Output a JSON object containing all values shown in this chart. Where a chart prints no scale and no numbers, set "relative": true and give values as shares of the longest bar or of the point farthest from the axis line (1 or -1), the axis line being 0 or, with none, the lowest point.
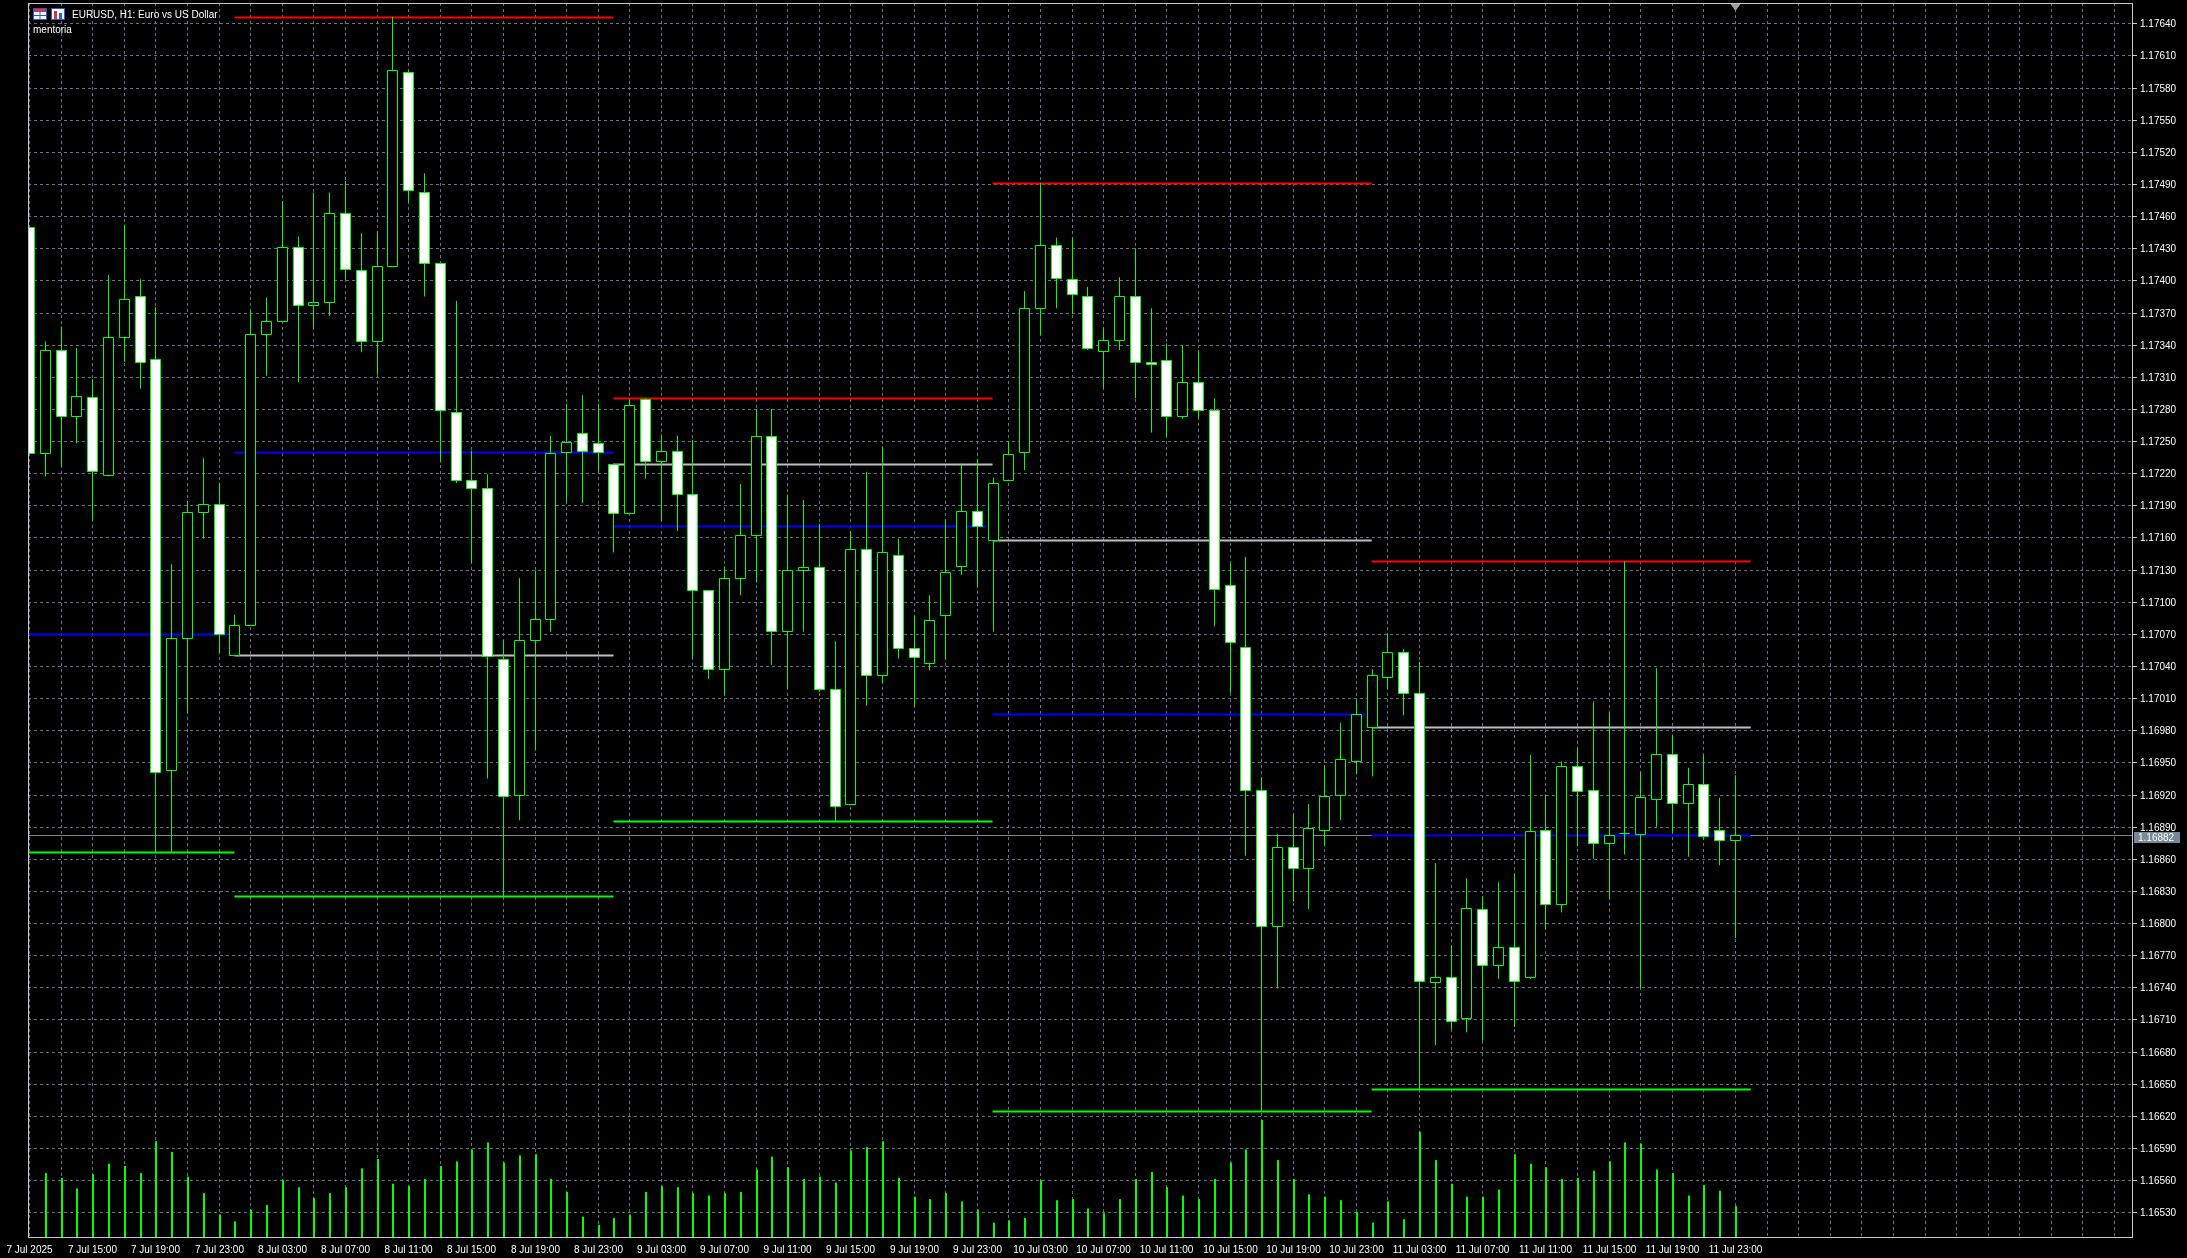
{
  "chart_data": [
    {
      "type": "candlestick",
      "title": "EURUSD, H1: Euro vs US Dollar",
      "subtitle": "mentoria",
      "color": "#00ff00",
      "grid": true,
      "x": [
        "2025-07-07T11:00",
        "2025-07-07T12:00",
        "2025-07-07T13:00",
        "2025-07-07T14:00",
        "2025-07-07T15:00",
        "2025-07-07T16:00",
        "2025-07-07T17:00",
        "2025-07-07T18:00",
        "2025-07-07T19:00",
        "2025-07-07T20:00",
        "2025-07-07T21:00",
        "2025-07-07T22:00",
        "2025-07-07T23:00",
        "2025-07-08T00:00",
        "2025-07-08T01:00",
        "2025-07-08T02:00",
        "2025-07-08T03:00",
        "2025-07-08T04:00",
        "2025-07-08T05:00",
        "2025-07-08T06:00",
        "2025-07-08T07:00",
        "2025-07-08T08:00",
        "2025-07-08T09:00",
        "2025-07-08T10:00",
        "2025-07-08T11:00",
        "2025-07-08T12:00",
        "2025-07-08T13:00",
        "2025-07-08T14:00",
        "2025-07-08T15:00",
        "2025-07-08T16:00",
        "2025-07-08T17:00",
        "2025-07-08T18:00",
        "2025-07-08T19:00",
        "2025-07-08T20:00",
        "2025-07-08T21:00",
        "2025-07-08T22:00",
        "2025-07-08T23:00",
        "2025-07-09T00:00",
        "2025-07-09T01:00",
        "2025-07-09T02:00",
        "2025-07-09T03:00",
        "2025-07-09T04:00",
        "2025-07-09T05:00",
        "2025-07-09T06:00",
        "2025-07-09T07:00",
        "2025-07-09T08:00",
        "2025-07-09T09:00",
        "2025-07-09T10:00",
        "2025-07-09T11:00",
        "2025-07-09T12:00",
        "2025-07-09T13:00",
        "2025-07-09T14:00",
        "2025-07-09T15:00",
        "2025-07-09T16:00",
        "2025-07-09T17:00",
        "2025-07-09T18:00",
        "2025-07-09T19:00",
        "2025-07-09T20:00",
        "2025-07-09T21:00",
        "2025-07-09T22:00",
        "2025-07-09T23:00",
        "2025-07-10T00:00",
        "2025-07-10T01:00",
        "2025-07-10T02:00",
        "2025-07-10T03:00",
        "2025-07-10T04:00",
        "2025-07-10T05:00",
        "2025-07-10T06:00",
        "2025-07-10T07:00",
        "2025-07-10T08:00",
        "2025-07-10T09:00",
        "2025-07-10T10:00",
        "2025-07-10T11:00",
        "2025-07-10T12:00",
        "2025-07-10T13:00",
        "2025-07-10T14:00",
        "2025-07-10T15:00",
        "2025-07-10T16:00",
        "2025-07-10T17:00",
        "2025-07-10T18:00",
        "2025-07-10T19:00",
        "2025-07-10T20:00",
        "2025-07-10T21:00",
        "2025-07-10T22:00",
        "2025-07-10T23:00",
        "2025-07-11T00:00",
        "2025-07-11T01:00",
        "2025-07-11T02:00",
        "2025-07-11T03:00",
        "2025-07-11T04:00",
        "2025-07-11T05:00",
        "2025-07-11T06:00",
        "2025-07-11T07:00",
        "2025-07-11T08:00",
        "2025-07-11T09:00",
        "2025-07-11T10:00",
        "2025-07-11T11:00",
        "2025-07-11T12:00",
        "2025-07-11T13:00",
        "2025-07-11T14:00",
        "2025-07-11T15:00",
        "2025-07-11T16:00",
        "2025-07-11T17:00",
        "2025-07-11T18:00",
        "2025-07-11T19:00",
        "2025-07-11T20:00",
        "2025-07-11T21:00",
        "2025-07-11T22:00",
        "2025-07-11T23:00"
      ],
      "ohlc": [
        [
          1.1745,
          1.1745,
          1.17239,
          1.17239
        ],
        [
          1.17239,
          1.17343,
          1.17217,
          1.17335
        ],
        [
          1.17335,
          1.17357,
          1.17226,
          1.17273
        ],
        [
          1.17273,
          1.17337,
          1.17248,
          1.17292
        ],
        [
          1.17291,
          1.17308,
          1.17176,
          1.17222
        ],
        [
          1.17218,
          1.17405,
          1.17217,
          1.17347
        ],
        [
          1.17347,
          1.17452,
          1.17324,
          1.17383
        ],
        [
          1.17385,
          1.17401,
          1.17299,
          1.17324
        ],
        [
          1.17327,
          1.17375,
          1.16866,
          1.16941
        ],
        [
          1.16943,
          1.17135,
          1.16866,
          1.17066
        ],
        [
          1.17066,
          1.17194,
          1.16996,
          1.17184
        ],
        [
          1.17184,
          1.17234,
          1.17159,
          1.17191
        ],
        [
          1.17191,
          1.17211,
          1.17052,
          1.1707
        ],
        [
          1.1705,
          1.17088,
          1.1705,
          1.17078
        ],
        [
          1.17078,
          1.17372,
          1.17078,
          1.1735
        ],
        [
          1.1735,
          1.17384,
          1.17311,
          1.17362
        ],
        [
          1.17362,
          1.17474,
          1.17362,
          1.17431
        ],
        [
          1.17431,
          1.17441,
          1.17305,
          1.17377
        ],
        [
          1.17377,
          1.17482,
          1.17355,
          1.1738
        ],
        [
          1.1738,
          1.17482,
          1.17367,
          1.17463
        ],
        [
          1.17463,
          1.17493,
          1.17401,
          1.17411
        ],
        [
          1.1741,
          1.17444,
          1.17333,
          1.17343
        ],
        [
          1.17343,
          1.17446,
          1.17312,
          1.17413
        ],
        [
          1.17413,
          1.17646,
          1.17413,
          1.17596
        ],
        [
          1.17595,
          1.17596,
          1.17473,
          1.17484
        ],
        [
          1.17483,
          1.175,
          1.17385,
          1.17416
        ],
        [
          1.17416,
          1.17416,
          1.1723,
          1.17279
        ],
        [
          1.17277,
          1.17381,
          1.17211,
          1.17214
        ],
        [
          1.17214,
          1.17241,
          1.17136,
          1.17206
        ],
        [
          1.17206,
          1.17219,
          1.16935,
          1.17049
        ],
        [
          1.17047,
          1.17064,
          1.16825,
          1.16919
        ],
        [
          1.1692,
          1.17122,
          1.16896,
          1.17064
        ],
        [
          1.17064,
          1.17129,
          1.16961,
          1.17084
        ],
        [
          1.17084,
          1.17255,
          1.17072,
          1.17239
        ],
        [
          1.1724,
          1.17285,
          1.17193,
          1.17249
        ],
        [
          1.17258,
          1.17293,
          1.17192,
          1.17241
        ],
        [
          1.17248,
          1.17285,
          1.17222,
          1.1724
        ],
        [
          1.17229,
          1.17229,
          1.17146,
          1.17183
        ],
        [
          1.17183,
          1.17289,
          1.17183,
          1.17284
        ],
        [
          1.17289,
          1.1729,
          1.17215,
          1.17231
        ],
        [
          1.17231,
          1.17256,
          1.17175,
          1.17241
        ],
        [
          1.17241,
          1.17255,
          1.17166,
          1.17201
        ],
        [
          1.17201,
          1.17251,
          1.17047,
          1.17111
        ],
        [
          1.17111,
          1.17111,
          1.17028,
          1.17037
        ],
        [
          1.17037,
          1.17133,
          1.17013,
          1.17122
        ],
        [
          1.17122,
          1.1721,
          1.17106,
          1.17162
        ],
        [
          1.17162,
          1.1728,
          1.17118,
          1.17255
        ],
        [
          1.17255,
          1.1728,
          1.17041,
          1.17073
        ],
        [
          1.17073,
          1.172,
          1.17019,
          1.1713
        ],
        [
          1.1713,
          1.17195,
          1.17072,
          1.17132
        ],
        [
          1.17132,
          1.17173,
          1.17016,
          1.17019
        ],
        [
          1.17019,
          1.17063,
          1.16895,
          1.16909
        ],
        [
          1.16911,
          1.17166,
          1.1691,
          1.17149
        ],
        [
          1.17149,
          1.17221,
          1.17003,
          1.17032
        ],
        [
          1.17032,
          1.17245,
          1.17024,
          1.17146
        ],
        [
          1.17144,
          1.17159,
          1.17047,
          1.17057
        ],
        [
          1.17057,
          1.17087,
          1.17002,
          1.17048
        ],
        [
          1.17043,
          1.17106,
          1.17036,
          1.17083
        ],
        [
          1.17088,
          1.17177,
          1.17046,
          1.17128
        ],
        [
          1.17133,
          1.17229,
          1.17125,
          1.17185
        ],
        [
          1.17185,
          1.17233,
          1.17114,
          1.17171
        ],
        [
          1.17158,
          1.17216,
          1.17072,
          1.17211
        ],
        [
          1.17214,
          1.1725,
          1.17214,
          1.17238
        ],
        [
          1.1724,
          1.1739,
          1.17223,
          1.17374
        ],
        [
          1.17374,
          1.17491,
          1.17349,
          1.17433
        ],
        [
          1.17433,
          1.1744,
          1.17374,
          1.17402
        ],
        [
          1.17401,
          1.1744,
          1.17369,
          1.17387
        ],
        [
          1.17385,
          1.17394,
          1.17335,
          1.17337
        ],
        [
          1.17334,
          1.17356,
          1.17299,
          1.17344
        ],
        [
          1.17344,
          1.17403,
          1.17335,
          1.17385
        ],
        [
          1.17385,
          1.1743,
          1.1729,
          1.17324
        ],
        [
          1.17324,
          1.17374,
          1.17258,
          1.17322
        ],
        [
          1.17326,
          1.17341,
          1.17254,
          1.17273
        ],
        [
          1.17273,
          1.17339,
          1.17271,
          1.17305
        ],
        [
          1.17305,
          1.17335,
          1.17272,
          1.17279
        ],
        [
          1.17279,
          1.1729,
          1.17077,
          1.17112
        ],
        [
          1.17116,
          1.17136,
          1.17015,
          1.17062
        ],
        [
          1.17058,
          1.17142,
          1.16863,
          1.16924
        ],
        [
          1.16924,
          1.16936,
          1.16625,
          1.16797
        ],
        [
          1.16797,
          1.16883,
          1.16739,
          1.16871
        ],
        [
          1.16871,
          1.16902,
          1.1682,
          1.16851
        ],
        [
          1.16851,
          1.16911,
          1.16813,
          1.16889
        ],
        [
          1.16887,
          1.16947,
          1.16872,
          1.16919
        ],
        [
          1.1692,
          1.16987,
          1.16896,
          1.16953
        ],
        [
          1.16951,
          1.17008,
          1.16939,
          1.16995
        ],
        [
          1.16983,
          1.17037,
          1.16937,
          1.17032
        ],
        [
          1.1703,
          1.1707,
          1.17018,
          1.17053
        ],
        [
          1.17053,
          1.17056,
          1.16994,
          1.17015
        ],
        [
          1.17015,
          1.17044,
          1.16645,
          1.16746
        ],
        [
          1.16745,
          1.16856,
          1.16686,
          1.1675
        ],
        [
          1.1675,
          1.16779,
          1.16701,
          1.16709
        ],
        [
          1.16711,
          1.16842,
          1.16698,
          1.16814
        ],
        [
          1.16813,
          1.16825,
          1.1669,
          1.16761
        ],
        [
          1.16761,
          1.16838,
          1.16748,
          1.16778
        ],
        [
          1.16778,
          1.16846,
          1.16703,
          1.16746
        ],
        [
          1.1675,
          1.16957,
          1.16748,
          1.16886
        ],
        [
          1.16887,
          1.1692,
          1.16794,
          1.16818
        ],
        [
          1.16818,
          1.16951,
          1.1681,
          1.16947
        ],
        [
          1.16947,
          1.16964,
          1.16872,
          1.16923
        ],
        [
          1.16924,
          1.17007,
          1.1686,
          1.16875
        ],
        [
          1.16875,
          1.16997,
          1.16822,
          1.16882
        ],
        [
          1.16884,
          1.17138,
          1.16864,
          1.16884
        ],
        [
          1.16883,
          1.16941,
          1.16739,
          1.16918
        ],
        [
          1.16916,
          1.17038,
          1.1689,
          1.16958
        ],
        [
          1.16958,
          1.16976,
          1.16884,
          1.16912
        ],
        [
          1.16912,
          1.16945,
          1.16862,
          1.1693
        ],
        [
          1.1693,
          1.16957,
          1.16878,
          1.16881
        ],
        [
          1.16887,
          1.16917,
          1.16854,
          1.16878
        ],
        [
          1.16878,
          1.16938,
          1.16786,
          1.16882
        ]
      ],
      "series": [
        {
          "type": "line",
          "x": [
            "2025-07-07T10:56",
            "2025-07-07T23:37"
          ],
          "values": [
            1.1707,
            1.1707
          ],
          "color": "#0000ff"
        },
        {
          "type": "line",
          "x": [
            "2025-07-07T10:56",
            "2025-07-08T00:00"
          ],
          "values": [
            1.16866,
            1.16866
          ],
          "color": "#00ff00"
        },
        {
          "type": "line",
          "x": [
            "2025-07-08T00:00",
            "2025-07-09T00:00"
          ],
          "values": [
            1.17646,
            1.17646
          ],
          "color": "#ff0000"
        },
        {
          "type": "line",
          "x": [
            "2025-07-08T00:00",
            "2025-07-09T00:00"
          ],
          "values": [
            1.1705,
            1.1705
          ],
          "color": "#c0c0c0"
        },
        {
          "type": "line",
          "x": [
            "2025-07-08T00:00",
            "2025-07-09T00:00"
          ],
          "values": [
            1.1724,
            1.1724
          ],
          "color": "#0000ff"
        },
        {
          "type": "line",
          "x": [
            "2025-07-08T00:00",
            "2025-07-09T00:00"
          ],
          "values": [
            1.16825,
            1.16825
          ],
          "color": "#00ff00"
        },
        {
          "type": "line",
          "x": [
            "2025-07-09T00:00",
            "2025-07-10T00:00"
          ],
          "values": [
            1.1729,
            1.1729
          ],
          "color": "#ff0000"
        },
        {
          "type": "line",
          "x": [
            "2025-07-09T00:00",
            "2025-07-10T00:00"
          ],
          "values": [
            1.17229,
            1.17229
          ],
          "color": "#c0c0c0"
        },
        {
          "type": "line",
          "x": [
            "2025-07-09T00:00",
            "2025-07-09T23:37"
          ],
          "values": [
            1.17171,
            1.17171
          ],
          "color": "#0000ff"
        },
        {
          "type": "line",
          "x": [
            "2025-07-09T00:00",
            "2025-07-10T00:00"
          ],
          "values": [
            1.16895,
            1.16895
          ],
          "color": "#00ff00"
        },
        {
          "type": "line",
          "x": [
            "2025-07-10T00:00",
            "2025-07-11T00:00"
          ],
          "values": [
            1.17491,
            1.17491
          ],
          "color": "#ff0000"
        },
        {
          "type": "line",
          "x": [
            "2025-07-10T00:00",
            "2025-07-11T00:00"
          ],
          "values": [
            1.17158,
            1.17158
          ],
          "color": "#c0c0c0"
        },
        {
          "type": "line",
          "x": [
            "2025-07-10T00:00",
            "2025-07-10T23:37"
          ],
          "values": [
            1.16995,
            1.16995
          ],
          "color": "#0000ff"
        },
        {
          "type": "line",
          "x": [
            "2025-07-10T00:00",
            "2025-07-11T00:00"
          ],
          "values": [
            1.16625,
            1.16625
          ],
          "color": "#00ff00"
        },
        {
          "type": "line",
          "x": [
            "2025-07-11T00:00",
            "2025-07-12T00:00"
          ],
          "values": [
            1.17138,
            1.17138
          ],
          "color": "#ff0000"
        },
        {
          "type": "line",
          "x": [
            "2025-07-11T00:00",
            "2025-07-12T00:00"
          ],
          "values": [
            1.16983,
            1.16983
          ],
          "color": "#c0c0c0"
        },
        {
          "type": "line",
          "x": [
            "2025-07-11T00:00",
            "2025-07-12T00:00"
          ],
          "values": [
            1.16882,
            1.16882
          ],
          "color": "#0000ff"
        },
        {
          "type": "line",
          "x": [
            "2025-07-11T00:00",
            "2025-07-12T00:00"
          ],
          "values": [
            1.16645,
            1.16645
          ],
          "color": "#00ff00"
        }
      ],
      "ref_lines": [
        {
          "axis": "y",
          "value": 1.16882,
          "label": "1.16882",
          "color": "#778899"
        }
      ],
      "xlim": [
        "2025-07-07T10:56",
        "2025-07-13T00:12"
      ],
      "xticks": [
        {
          "value": "2025-07-07T11:00",
          "label": "7 Jul 2025"
        },
        {
          "value": "2025-07-07T13:00",
          "label": null
        },
        {
          "value": "2025-07-07T15:00",
          "label": "7 Jul 15:00"
        },
        {
          "value": "2025-07-07T17:00",
          "label": null
        },
        {
          "value": "2025-07-07T19:00",
          "label": "7 Jul 19:00"
        },
        {
          "value": "2025-07-07T21:00",
          "label": null
        },
        {
          "value": "2025-07-07T23:00",
          "label": "7 Jul 23:00"
        },
        {
          "value": "2025-07-08T01:00",
          "label": null
        },
        {
          "value": "2025-07-08T03:00",
          "label": "8 Jul 03:00"
        },
        {
          "value": "2025-07-08T05:00",
          "label": null
        },
        {
          "value": "2025-07-08T07:00",
          "label": "8 Jul 07:00"
        },
        {
          "value": "2025-07-08T09:00",
          "label": null
        },
        {
          "value": "2025-07-08T11:00",
          "label": "8 Jul 11:00"
        },
        {
          "value": "2025-07-08T13:00",
          "label": null
        },
        {
          "value": "2025-07-08T15:00",
          "label": "8 Jul 15:00"
        },
        {
          "value": "2025-07-08T17:00",
          "label": null
        },
        {
          "value": "2025-07-08T19:00",
          "label": "8 Jul 19:00"
        },
        {
          "value": "2025-07-08T21:00",
          "label": null
        },
        {
          "value": "2025-07-08T23:00",
          "label": "8 Jul 23:00"
        },
        {
          "value": "2025-07-09T01:00",
          "label": null
        },
        {
          "value": "2025-07-09T03:00",
          "label": "9 Jul 03:00"
        },
        {
          "value": "2025-07-09T05:00",
          "label": null
        },
        {
          "value": "2025-07-09T07:00",
          "label": "9 Jul 07:00"
        },
        {
          "value": "2025-07-09T09:00",
          "label": null
        },
        {
          "value": "2025-07-09T11:00",
          "label": "9 Jul 11:00"
        },
        {
          "value": "2025-07-09T13:00",
          "label": null
        },
        {
          "value": "2025-07-09T15:00",
          "label": "9 Jul 15:00"
        },
        {
          "value": "2025-07-09T17:00",
          "label": null
        },
        {
          "value": "2025-07-09T19:00",
          "label": "9 Jul 19:00"
        },
        {
          "value": "2025-07-09T21:00",
          "label": null
        },
        {
          "value": "2025-07-09T23:00",
          "label": "9 Jul 23:00"
        },
        {
          "value": "2025-07-10T01:00",
          "label": null
        },
        {
          "value": "2025-07-10T03:00",
          "label": "10 Jul 03:00"
        },
        {
          "value": "2025-07-10T05:00",
          "label": null
        },
        {
          "value": "2025-07-10T07:00",
          "label": "10 Jul 07:00"
        },
        {
          "value": "2025-07-10T09:00",
          "label": null
        },
        {
          "value": "2025-07-10T11:00",
          "label": "10 Jul 11:00"
        },
        {
          "value": "2025-07-10T13:00",
          "label": null
        },
        {
          "value": "2025-07-10T15:00",
          "label": "10 Jul 15:00"
        },
        {
          "value": "2025-07-10T17:00",
          "label": null
        },
        {
          "value": "2025-07-10T19:00",
          "label": "10 Jul 19:00"
        },
        {
          "value": "2025-07-10T21:00",
          "label": null
        },
        {
          "value": "2025-07-10T23:00",
          "label": "10 Jul 23:00"
        },
        {
          "value": "2025-07-11T01:00",
          "label": null
        },
        {
          "value": "2025-07-11T03:00",
          "label": "11 Jul 03:00"
        },
        {
          "value": "2025-07-11T05:00",
          "label": null
        },
        {
          "value": "2025-07-11T07:00",
          "label": "11 Jul 07:00"
        },
        {
          "value": "2025-07-11T09:00",
          "label": null
        },
        {
          "value": "2025-07-11T11:00",
          "label": "11 Jul 11:00"
        },
        {
          "value": "2025-07-11T13:00",
          "label": null
        },
        {
          "value": "2025-07-11T15:00",
          "label": "11 Jul 15:00"
        },
        {
          "value": "2025-07-11T17:00",
          "label": null
        },
        {
          "value": "2025-07-11T19:00",
          "label": "11 Jul 19:00"
        },
        {
          "value": "2025-07-11T21:00",
          "label": null
        },
        {
          "value": "2025-07-11T23:00",
          "label": "11 Jul 23:00"
        },
        {
          "value": "2025-07-12T01:00",
          "label": null
        },
        {
          "value": "2025-07-12T03:00",
          "label": null
        },
        {
          "value": "2025-07-12T05:00",
          "label": null
        },
        {
          "value": "2025-07-12T07:00",
          "label": null
        },
        {
          "value": "2025-07-12T09:00",
          "label": null
        },
        {
          "value": "2025-07-12T11:00",
          "label": null
        },
        {
          "value": "2025-07-12T13:00",
          "label": null
        },
        {
          "value": "2025-07-12T15:00",
          "label": null
        },
        {
          "value": "2025-07-12T17:00",
          "label": null
        },
        {
          "value": "2025-07-12T19:00",
          "label": null
        },
        {
          "value": "2025-07-12T21:00",
          "label": null
        },
        {
          "value": "2025-07-12T23:00",
          "label": null
        }
      ],
      "ylim": [
        1.16506,
        1.17659
      ],
      "yticks": [
        {
          "value": 1.1764,
          "label": "1.17640"
        },
        {
          "value": 1.1761,
          "label": "1.17610"
        },
        {
          "value": 1.1758,
          "label": "1.17580"
        },
        {
          "value": 1.1755,
          "label": "1.17550"
        },
        {
          "value": 1.1752,
          "label": "1.17520"
        },
        {
          "value": 1.1749,
          "label": "1.17490"
        },
        {
          "value": 1.1746,
          "label": "1.17460"
        },
        {
          "value": 1.1743,
          "label": "1.17430"
        },
        {
          "value": 1.174,
          "label": "1.17400"
        },
        {
          "value": 1.1737,
          "label": "1.17370"
        },
        {
          "value": 1.1734,
          "label": "1.17340"
        },
        {
          "value": 1.1731,
          "label": "1.17310"
        },
        {
          "value": 1.1728,
          "label": "1.17280"
        },
        {
          "value": 1.1725,
          "label": "1.17250"
        },
        {
          "value": 1.1722,
          "label": "1.17220"
        },
        {
          "value": 1.1719,
          "label": "1.17190"
        },
        {
          "value": 1.1716,
          "label": "1.17160"
        },
        {
          "value": 1.1713,
          "label": "1.17130"
        },
        {
          "value": 1.171,
          "label": "1.17100"
        },
        {
          "value": 1.1707,
          "label": "1.17070"
        },
        {
          "value": 1.1704,
          "label": "1.17040"
        },
        {
          "value": 1.1701,
          "label": "1.17010"
        },
        {
          "value": 1.1698,
          "label": "1.16980"
        },
        {
          "value": 1.1695,
          "label": "1.16950"
        },
        {
          "value": 1.1692,
          "label": "1.16920"
        },
        {
          "value": 1.1689,
          "label": "1.16890"
        },
        {
          "value": 1.1686,
          "label": "1.16860"
        },
        {
          "value": 1.1683,
          "label": "1.16830"
        },
        {
          "value": 1.168,
          "label": "1.16800"
        },
        {
          "value": 1.1677,
          "label": "1.16770"
        },
        {
          "value": 1.1674,
          "label": "1.16740"
        },
        {
          "value": 1.1671,
          "label": "1.16710"
        },
        {
          "value": 1.1668,
          "label": "1.16680"
        },
        {
          "value": 1.1665,
          "label": "1.16650"
        },
        {
          "value": 1.1662,
          "label": "1.16620"
        },
        {
          "value": 1.1659,
          "label": "1.16590"
        },
        {
          "value": 1.1656,
          "label": "1.16560"
        },
        {
          "value": 1.1653,
          "label": "1.16530"
        }
      ]
    },
    {
      "type": "bar",
      "relative": true,
      "color": "#00ff00",
      "xlim": [
        "2025-07-07T10:56",
        "2025-07-13T00:12"
      ],
      "x": [
        "2025-07-07T12:00",
        "2025-07-07T13:00",
        "2025-07-07T14:00",
        "2025-07-07T15:00",
        "2025-07-07T16:00",
        "2025-07-07T17:00",
        "2025-07-07T18:00",
        "2025-07-07T19:00",
        "2025-07-07T20:00",
        "2025-07-07T21:00",
        "2025-07-07T22:00",
        "2025-07-07T23:00",
        "2025-07-08T00:00",
        "2025-07-08T01:00",
        "2025-07-08T02:00",
        "2025-07-08T03:00",
        "2025-07-08T04:00",
        "2025-07-08T05:00",
        "2025-07-08T06:00",
        "2025-07-08T07:00",
        "2025-07-08T08:00",
        "2025-07-08T09:00",
        "2025-07-08T10:00",
        "2025-07-08T11:00",
        "2025-07-08T12:00",
        "2025-07-08T13:00",
        "2025-07-08T14:00",
        "2025-07-08T15:00",
        "2025-07-08T16:00",
        "2025-07-08T17:00",
        "2025-07-08T18:00",
        "2025-07-08T19:00",
        "2025-07-08T20:00",
        "2025-07-08T21:00",
        "2025-07-08T22:00",
        "2025-07-08T23:00",
        "2025-07-09T00:00",
        "2025-07-09T01:00",
        "2025-07-09T02:00",
        "2025-07-09T03:00",
        "2025-07-09T04:00",
        "2025-07-09T05:00",
        "2025-07-09T06:00",
        "2025-07-09T07:00",
        "2025-07-09T08:00",
        "2025-07-09T09:00",
        "2025-07-09T10:00",
        "2025-07-09T11:00",
        "2025-07-09T12:00",
        "2025-07-09T13:00",
        "2025-07-09T14:00",
        "2025-07-09T15:00",
        "2025-07-09T16:00",
        "2025-07-09T17:00",
        "2025-07-09T18:00",
        "2025-07-09T19:00",
        "2025-07-09T20:00",
        "2025-07-09T21:00",
        "2025-07-09T22:00",
        "2025-07-09T23:00",
        "2025-07-10T00:00",
        "2025-07-10T01:00",
        "2025-07-10T02:00",
        "2025-07-10T03:00",
        "2025-07-10T04:00",
        "2025-07-10T05:00",
        "2025-07-10T06:00",
        "2025-07-10T07:00",
        "2025-07-10T08:00",
        "2025-07-10T09:00",
        "2025-07-10T10:00",
        "2025-07-10T11:00",
        "2025-07-10T12:00",
        "2025-07-10T13:00",
        "2025-07-10T14:00",
        "2025-07-10T15:00",
        "2025-07-10T16:00",
        "2025-07-10T17:00",
        "2025-07-10T18:00",
        "2025-07-10T19:00",
        "2025-07-10T20:00",
        "2025-07-10T21:00",
        "2025-07-10T22:00",
        "2025-07-10T23:00",
        "2025-07-11T00:00",
        "2025-07-11T01:00",
        "2025-07-11T02:00",
        "2025-07-11T03:00",
        "2025-07-11T04:00",
        "2025-07-11T05:00",
        "2025-07-11T06:00",
        "2025-07-11T07:00",
        "2025-07-11T08:00",
        "2025-07-11T09:00",
        "2025-07-11T10:00",
        "2025-07-11T11:00",
        "2025-07-11T12:00",
        "2025-07-11T13:00",
        "2025-07-11T14:00",
        "2025-07-11T15:00",
        "2025-07-11T16:00",
        "2025-07-11T17:00",
        "2025-07-11T18:00",
        "2025-07-11T19:00",
        "2025-07-11T20:00",
        "2025-07-11T21:00",
        "2025-07-11T22:00",
        "2025-07-11T23:00"
      ],
      "values": [
        0.55,
        0.51,
        0.42,
        0.54,
        0.63,
        0.61,
        0.55,
        0.82,
        0.73,
        0.52,
        0.38,
        0.2,
        0.14,
        0.24,
        0.28,
        0.49,
        0.43,
        0.34,
        0.38,
        0.43,
        0.59,
        0.67,
        0.46,
        0.44,
        0.5,
        0.61,
        0.65,
        0.75,
        0.81,
        0.64,
        0.7,
        0.71,
        0.5,
        0.39,
        0.18,
        0.11,
        0.17,
        0.2,
        0.39,
        0.44,
        0.43,
        0.38,
        0.36,
        0.38,
        0.39,
        0.58,
        0.69,
        0.6,
        0.5,
        0.52,
        0.47,
        0.74,
        0.77,
        0.82,
        0.51,
        0.35,
        0.33,
        0.38,
        0.31,
        0.24,
        0.13,
        0.15,
        0.17,
        0.49,
        0.32,
        0.33,
        0.25,
        0.21,
        0.33,
        0.5,
        0.56,
        0.43,
        0.36,
        0.33,
        0.5,
        0.64,
        0.75,
        1,
        0.66,
        0.5,
        0.37,
        0.35,
        0.32,
        0.22,
        0.13,
        0.31,
        0.16,
        0.9,
        0.66,
        0.46,
        0.35,
        0.35,
        0.41,
        0.71,
        0.63,
        0.6,
        0.5,
        0.51,
        0.57,
        0.65,
        0.81,
        0.8,
        0.58,
        0.55,
        0.36,
        0.45,
        0.4,
        0.27
      ]
    }
  ]
}
